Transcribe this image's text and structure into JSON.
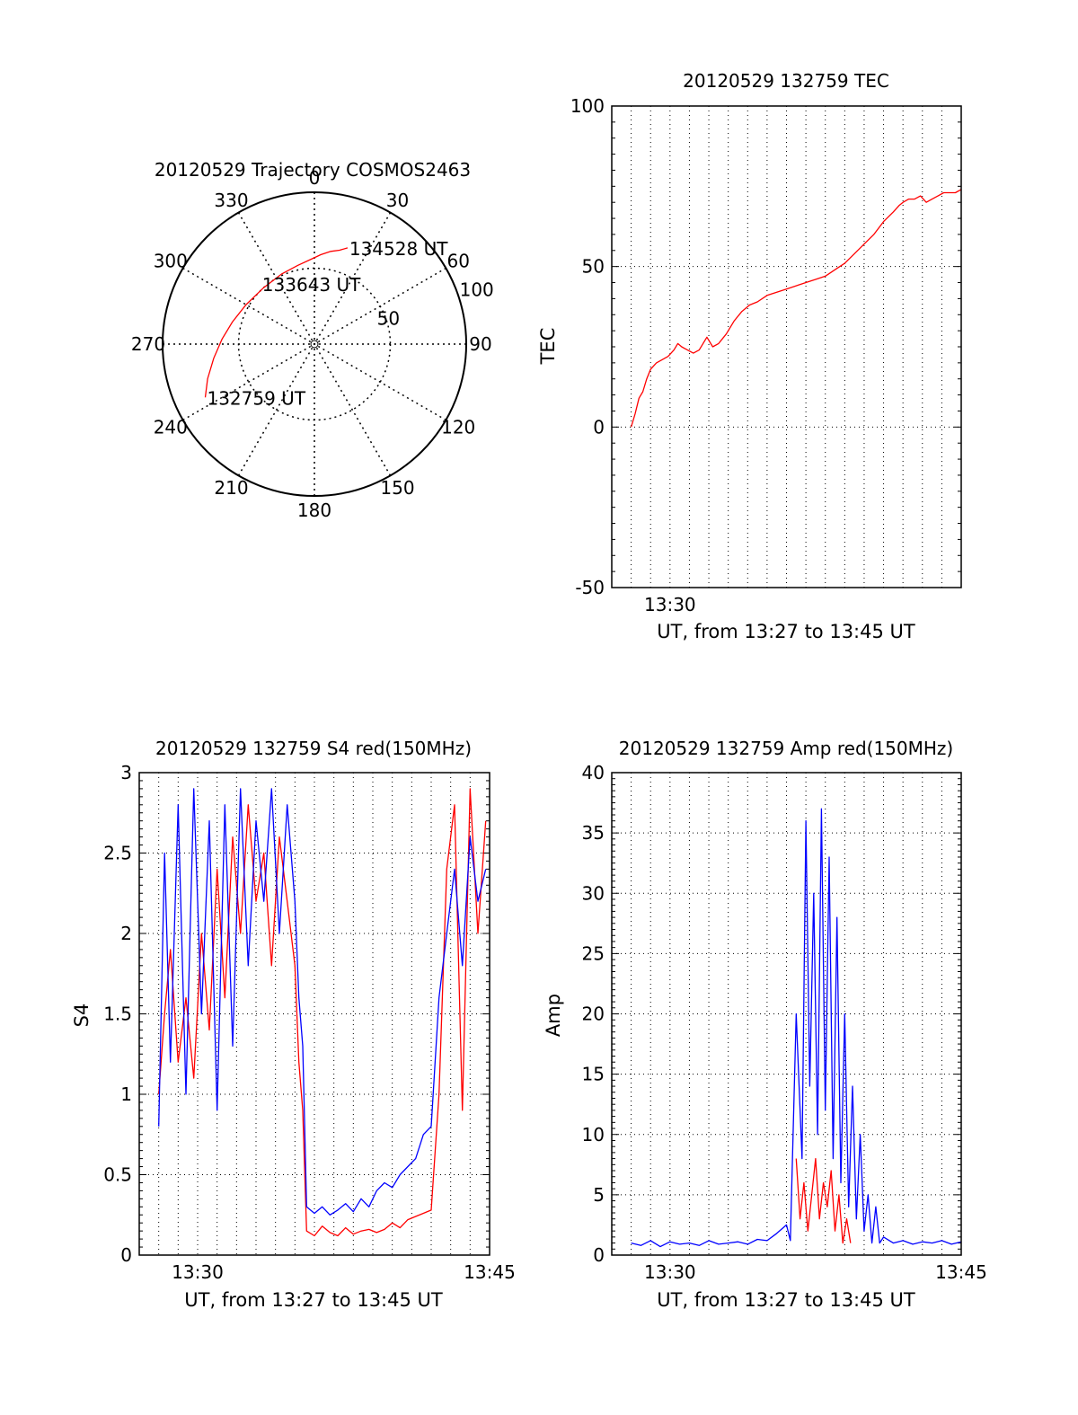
{
  "chart_data": [
    {
      "type": "polar",
      "title": "20120529 Trajectory COSMOS2463",
      "angle_labels": [
        "0",
        "30",
        "60",
        "90",
        "120",
        "150",
        "180",
        "210",
        "240",
        "270",
        "300",
        "330"
      ],
      "radius_labels": [
        "50",
        "100"
      ],
      "trajectory": {
        "color": "#ff0000",
        "points": [
          [
            244,
            80
          ],
          [
            252,
            74
          ],
          [
            262,
            67
          ],
          [
            273,
            61
          ],
          [
            285,
            56
          ],
          [
            300,
            52
          ],
          [
            318,
            50
          ],
          [
            335,
            51
          ],
          [
            348,
            53
          ],
          [
            358,
            56
          ],
          [
            4,
            59
          ],
          [
            10,
            62
          ],
          [
            15,
            64
          ],
          [
            19,
            67
          ]
        ]
      },
      "annotations": [
        {
          "text": "132759 UT",
          "az": 244,
          "r": 80
        },
        {
          "text": "133643 UT",
          "az": 352,
          "r": 40
        },
        {
          "text": "134528 UT",
          "az": 19,
          "r": 67
        }
      ]
    },
    {
      "type": "line",
      "title": "20120529 132759 TEC",
      "xlabel": "UT, from 13:27 to 13:45 UT",
      "ylabel": "TEC",
      "ylim": [
        -50,
        100
      ],
      "yticks": [
        "-50",
        "0",
        "50",
        "100"
      ],
      "xticks": [
        {
          "t": 30,
          "label": "13:30"
        }
      ],
      "xlim": [
        27,
        45
      ],
      "grid": true,
      "series": [
        {
          "color": "#ff0000",
          "x": [
            28.0,
            28.2,
            28.4,
            28.6,
            28.8,
            29.0,
            29.3,
            29.6,
            29.9,
            30.2,
            30.4,
            30.6,
            30.9,
            31.2,
            31.5,
            31.7,
            31.9,
            32.2,
            32.5,
            32.9,
            33.3,
            33.7,
            34.1,
            34.5,
            35.0,
            35.5,
            36.0,
            36.5,
            37.0,
            37.5,
            38.0,
            38.5,
            39.0,
            39.5,
            40.0,
            40.5,
            41.0,
            41.5,
            41.8,
            42.0,
            42.3,
            42.6,
            42.9,
            43.2,
            43.5,
            43.8,
            44.1,
            44.4,
            44.7,
            45.0
          ],
          "y": [
            0,
            4,
            9,
            11,
            15,
            18,
            20,
            21,
            22,
            24,
            26,
            25,
            24,
            23,
            24,
            26,
            28,
            25,
            26,
            29,
            33,
            36,
            38,
            39,
            41,
            42,
            43,
            44,
            45,
            46,
            47,
            49,
            51,
            54,
            57,
            60,
            64,
            67,
            69,
            70,
            71,
            71,
            72,
            70,
            71,
            72,
            73,
            73,
            73,
            74
          ]
        }
      ]
    },
    {
      "type": "line",
      "title": "20120529 132759 S4 red(150MHz)",
      "xlabel": "UT, from 13:27 to 13:45 UT",
      "ylabel": "S4",
      "ylim": [
        0,
        3
      ],
      "yticks": [
        "0",
        "0.5",
        "1",
        "1.5",
        "2",
        "2.5",
        "3"
      ],
      "xticks": [
        {
          "t": 30,
          "label": "13:30"
        },
        {
          "t": 45,
          "label": "13:45"
        }
      ],
      "xlim": [
        27,
        45
      ],
      "grid": true,
      "series": [
        {
          "color": "#ff0000",
          "x": [
            28.0,
            28.3,
            28.6,
            29.0,
            29.4,
            29.8,
            30.2,
            30.6,
            31.0,
            31.4,
            31.8,
            32.2,
            32.6,
            33.0,
            33.4,
            33.8,
            34.2,
            34.6,
            35.0,
            35.2,
            35.4,
            35.6,
            36.0,
            36.4,
            36.8,
            37.2,
            37.6,
            38.0,
            38.4,
            38.8,
            39.2,
            39.6,
            40.0,
            40.4,
            40.8,
            41.2,
            41.6,
            42.0,
            42.4,
            42.8,
            43.2,
            43.6,
            44.0,
            44.4,
            44.8
          ],
          "y": [
            1.0,
            1.5,
            1.9,
            1.2,
            1.6,
            1.1,
            2.0,
            1.4,
            2.4,
            1.6,
            2.6,
            2.0,
            2.8,
            2.2,
            2.5,
            1.8,
            2.6,
            2.2,
            1.8,
            1.2,
            0.9,
            0.15,
            0.12,
            0.18,
            0.14,
            0.12,
            0.17,
            0.13,
            0.15,
            0.16,
            0.14,
            0.16,
            0.2,
            0.17,
            0.22,
            0.24,
            0.26,
            0.28,
            1.0,
            2.4,
            2.8,
            0.9,
            2.9,
            2.0,
            2.7
          ]
        },
        {
          "color": "#0000ff",
          "x": [
            28.0,
            28.3,
            28.6,
            29.0,
            29.4,
            29.8,
            30.2,
            30.6,
            31.0,
            31.4,
            31.8,
            32.2,
            32.6,
            33.0,
            33.4,
            33.8,
            34.2,
            34.6,
            35.0,
            35.2,
            35.4,
            35.6,
            36.0,
            36.4,
            36.8,
            37.2,
            37.6,
            38.0,
            38.4,
            38.8,
            39.2,
            39.6,
            40.0,
            40.4,
            40.8,
            41.2,
            41.6,
            42.0,
            42.4,
            42.8,
            43.2,
            43.6,
            44.0,
            44.4,
            44.8
          ],
          "y": [
            0.8,
            2.5,
            1.2,
            2.8,
            1.0,
            2.9,
            1.5,
            2.7,
            0.9,
            2.8,
            1.3,
            2.9,
            1.8,
            2.7,
            2.2,
            2.9,
            2.0,
            2.8,
            2.2,
            1.6,
            1.3,
            0.3,
            0.26,
            0.3,
            0.25,
            0.28,
            0.32,
            0.27,
            0.35,
            0.3,
            0.4,
            0.45,
            0.42,
            0.5,
            0.55,
            0.6,
            0.75,
            0.8,
            1.6,
            2.0,
            2.4,
            1.8,
            2.6,
            2.2,
            2.4
          ]
        }
      ]
    },
    {
      "type": "line",
      "title": "20120529 132759 Amp red(150MHz)",
      "xlabel": "UT, from 13:27 to 13:45 UT",
      "ylabel": "Amp",
      "ylim": [
        0,
        40
      ],
      "yticks": [
        "0",
        "5",
        "10",
        "15",
        "20",
        "25",
        "30",
        "35",
        "40"
      ],
      "xticks": [
        {
          "t": 30,
          "label": "13:30"
        },
        {
          "t": 45,
          "label": "13:45"
        }
      ],
      "xlim": [
        27,
        45
      ],
      "grid": true,
      "series": [
        {
          "color": "#ff0000",
          "x": [
            36.5,
            36.7,
            36.9,
            37.1,
            37.3,
            37.5,
            37.7,
            37.9,
            38.1,
            38.3,
            38.5,
            38.7,
            38.9,
            39.1,
            39.3
          ],
          "y": [
            8,
            3,
            6,
            2,
            5,
            8,
            3,
            6,
            4,
            7,
            2,
            5,
            1,
            3,
            1
          ]
        },
        {
          "color": "#0000ff",
          "x": [
            28.0,
            28.5,
            29.0,
            29.5,
            30.0,
            30.5,
            31.0,
            31.5,
            32.0,
            32.5,
            33.0,
            33.5,
            34.0,
            34.5,
            35.0,
            35.5,
            36.0,
            36.2,
            36.5,
            36.8,
            37.0,
            37.2,
            37.4,
            37.6,
            37.8,
            38.0,
            38.2,
            38.4,
            38.6,
            38.8,
            39.0,
            39.2,
            39.4,
            39.6,
            39.8,
            40.0,
            40.2,
            40.4,
            40.6,
            40.8,
            41.0,
            41.5,
            42.0,
            42.5,
            43.0,
            43.5,
            44.0,
            44.5,
            45.0
          ],
          "y": [
            1,
            0.8,
            1.2,
            0.7,
            1.1,
            0.9,
            1.0,
            0.8,
            1.2,
            0.9,
            1.0,
            1.1,
            0.9,
            1.3,
            1.2,
            1.8,
            2.5,
            1.2,
            20,
            8,
            36,
            14,
            30,
            10,
            37,
            12,
            33,
            8,
            28,
            6,
            20,
            4,
            14,
            3,
            10,
            2,
            5,
            1,
            4,
            1,
            1.5,
            1.0,
            1.2,
            0.9,
            1.1,
            1.0,
            1.2,
            0.9,
            1.1
          ]
        }
      ]
    }
  ]
}
